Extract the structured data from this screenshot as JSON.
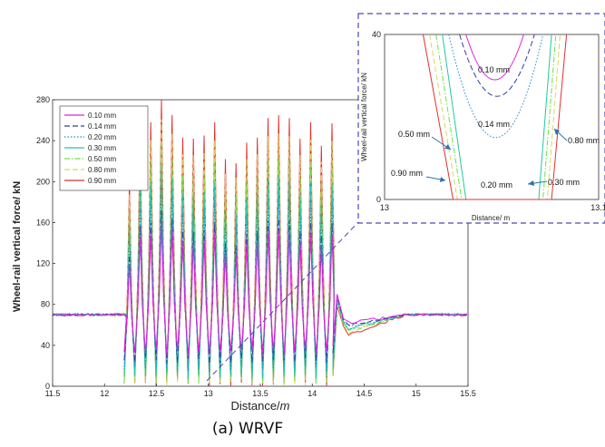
{
  "caption": "(a) WRVF",
  "chart_data": [
    {
      "type": "line",
      "title": "",
      "xlabel": "Distance/",
      "xlabel_unit": "m",
      "ylabel": "Wheel-rail vertical force/ kN",
      "xlim": [
        11.5,
        15.5
      ],
      "ylim": [
        0,
        280
      ],
      "x_ticks": [
        "11.5",
        "12",
        "12.5",
        "13",
        "13.5",
        "14",
        "14.5",
        "15",
        "15.5"
      ],
      "y_ticks": [
        "0",
        "40",
        "80",
        "120",
        "160",
        "200",
        "240",
        "280"
      ],
      "grid": false,
      "legend_position": "top-left",
      "baseline_force": 70,
      "peak_count": 20,
      "peak_x_start": 12.24,
      "peak_x_end": 14.19,
      "peak_values_max_series": [
        200,
        252,
        258,
        280,
        265,
        243,
        242,
        245,
        258,
        222,
        218,
        238,
        243,
        262,
        265,
        262,
        242,
        258,
        235,
        257
      ],
      "series": [
        {
          "name": "0.10 mm",
          "color": "#e020e0",
          "dash": "solid",
          "peak_scale": 0.5,
          "trough": 30
        },
        {
          "name": "0.14 mm",
          "color": "#3a3aa8",
          "dash": "dash",
          "peak_scale": 0.55,
          "trough": 22
        },
        {
          "name": "0.20 mm",
          "color": "#2a8acb",
          "dash": "dot",
          "peak_scale": 0.65,
          "trough": 14
        },
        {
          "name": "0.30 mm",
          "color": "#20c8a8",
          "dash": "solid",
          "peak_scale": 0.73,
          "trough": 6
        },
        {
          "name": "0.50 mm",
          "color": "#70e040",
          "dash": "dashdot",
          "peak_scale": 0.82,
          "trough": 2
        },
        {
          "name": "0.80 mm",
          "color": "#d8d860",
          "dash": "dash",
          "peak_scale": 0.92,
          "trough": 0
        },
        {
          "name": "0.90 mm",
          "color": "#e03030",
          "dash": "solid",
          "peak_scale": 1.0,
          "trough": 0
        }
      ]
    },
    {
      "type": "line",
      "title": "",
      "xlabel": "Distance/ m",
      "ylabel": "Wheel-rail vertical force/ kN",
      "xlim": [
        13,
        13.1
      ],
      "ylim": [
        0,
        40
      ],
      "x_ticks": [
        "13",
        "13.1"
      ],
      "y_ticks": [
        "0",
        "40"
      ],
      "annotations": [
        "0.10 mm",
        "0.14 mm",
        "0.20 mm",
        "0.30 mm",
        "0.50 mm",
        "0.80 mm",
        "0.90 mm"
      ]
    }
  ]
}
